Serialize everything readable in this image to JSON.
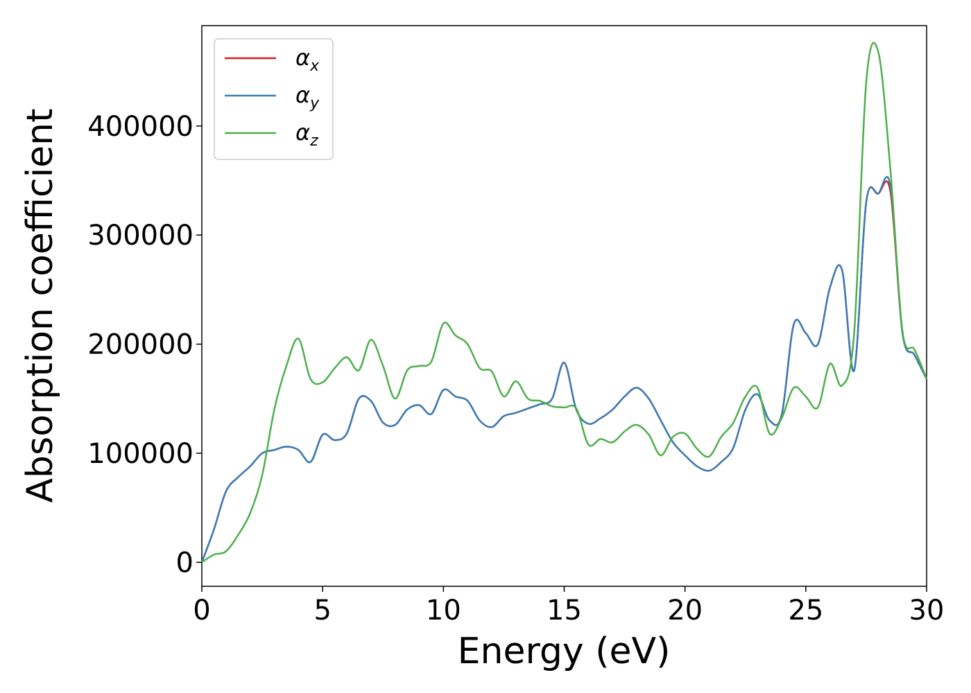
{
  "chart_data": {
    "type": "line",
    "xlabel": "Energy (eV)",
    "ylabel": "Absorption coefficient",
    "xlim": [
      0,
      30
    ],
    "ylim": [
      -22000,
      492000
    ],
    "xticks": [
      0,
      5,
      10,
      15,
      20,
      25,
      30
    ],
    "yticks": [
      0,
      100000,
      200000,
      300000,
      400000
    ],
    "grid": false,
    "legend_position": "top-left",
    "series": [
      {
        "name": "α",
        "subscript": "x",
        "color": "#e41a1c",
        "x": [
          0,
          0.5,
          1,
          1.5,
          2,
          2.5,
          3,
          3.5,
          4,
          4.5,
          5,
          5.5,
          6,
          6.5,
          7,
          7.5,
          8,
          8.5,
          9,
          9.5,
          10,
          10.5,
          11,
          11.5,
          12,
          12.5,
          13,
          13.5,
          14,
          14.5,
          15,
          15.5,
          16,
          16.5,
          17,
          17.5,
          18,
          18.5,
          19,
          19.5,
          20,
          20.5,
          21,
          21.5,
          22,
          22.5,
          23,
          23.5,
          24,
          24.5,
          25,
          25.5,
          26,
          26.5,
          27,
          27.5,
          28,
          28.5,
          29,
          29.5,
          30
        ],
        "y": [
          0,
          30000,
          65000,
          78000,
          88000,
          100000,
          103000,
          106000,
          103000,
          92000,
          117000,
          112000,
          118000,
          150000,
          148000,
          128000,
          126000,
          140000,
          144000,
          136000,
          158000,
          152000,
          148000,
          130000,
          124000,
          134000,
          137000,
          141000,
          145000,
          150000,
          183000,
          140000,
          127000,
          132000,
          140000,
          152000,
          160000,
          150000,
          130000,
          110000,
          98000,
          88000,
          84000,
          92000,
          105000,
          140000,
          154000,
          130000,
          135000,
          218000,
          210000,
          200000,
          252000,
          268000,
          176000,
          330000,
          338000,
          340000,
          210000,
          190000,
          168000
        ]
      },
      {
        "name": "α",
        "subscript": "y",
        "color": "#377eb8",
        "x": [
          0,
          0.5,
          1,
          1.5,
          2,
          2.5,
          3,
          3.5,
          4,
          4.5,
          5,
          5.5,
          6,
          6.5,
          7,
          7.5,
          8,
          8.5,
          9,
          9.5,
          10,
          10.5,
          11,
          11.5,
          12,
          12.5,
          13,
          13.5,
          14,
          14.5,
          15,
          15.5,
          16,
          16.5,
          17,
          17.5,
          18,
          18.5,
          19,
          19.5,
          20,
          20.5,
          21,
          21.5,
          22,
          22.5,
          23,
          23.5,
          24,
          24.5,
          25,
          25.5,
          26,
          26.5,
          27,
          27.5,
          28,
          28.5,
          29,
          29.5,
          30
        ],
        "y": [
          0,
          30000,
          65000,
          78000,
          88000,
          100000,
          103000,
          106000,
          103000,
          92000,
          117000,
          112000,
          118000,
          150000,
          148000,
          128000,
          126000,
          140000,
          144000,
          136000,
          158000,
          152000,
          148000,
          130000,
          124000,
          134000,
          137000,
          141000,
          145000,
          150000,
          183000,
          140000,
          127000,
          132000,
          140000,
          152000,
          160000,
          150000,
          130000,
          110000,
          98000,
          88000,
          84000,
          92000,
          105000,
          140000,
          154000,
          130000,
          135000,
          218000,
          210000,
          200000,
          252000,
          268000,
          176000,
          330000,
          338000,
          345000,
          210000,
          190000,
          168000
        ]
      },
      {
        "name": "α",
        "subscript": "z",
        "color": "#4daf4a",
        "x": [
          0,
          0.5,
          1,
          1.5,
          2,
          2.5,
          3,
          3.5,
          4,
          4.5,
          5,
          5.5,
          6,
          6.5,
          7,
          7.5,
          8,
          8.5,
          9,
          9.5,
          10,
          10.5,
          11,
          11.5,
          12,
          12.5,
          13,
          13.5,
          14,
          14.5,
          15,
          15.5,
          16,
          16.5,
          17,
          17.5,
          18,
          18.5,
          19,
          19.5,
          20,
          20.5,
          21,
          21.5,
          22,
          22.5,
          23,
          23.5,
          24,
          24.5,
          25,
          25.5,
          26,
          26.5,
          27,
          27.5,
          28,
          28.5,
          29,
          29.5,
          30
        ],
        "y": [
          0,
          7000,
          10000,
          25000,
          45000,
          80000,
          140000,
          180000,
          205000,
          168000,
          165000,
          178000,
          188000,
          176000,
          204000,
          180000,
          150000,
          176000,
          180000,
          184000,
          219000,
          208000,
          200000,
          178000,
          175000,
          152000,
          166000,
          150000,
          148000,
          143000,
          142000,
          141000,
          108000,
          113000,
          110000,
          120000,
          126000,
          117000,
          98000,
          115000,
          118000,
          104000,
          97000,
          115000,
          128000,
          152000,
          160000,
          118000,
          132000,
          160000,
          152000,
          142000,
          182000,
          162000,
          210000,
          440000,
          468000,
          360000,
          212000,
          195000,
          168000
        ]
      }
    ]
  }
}
